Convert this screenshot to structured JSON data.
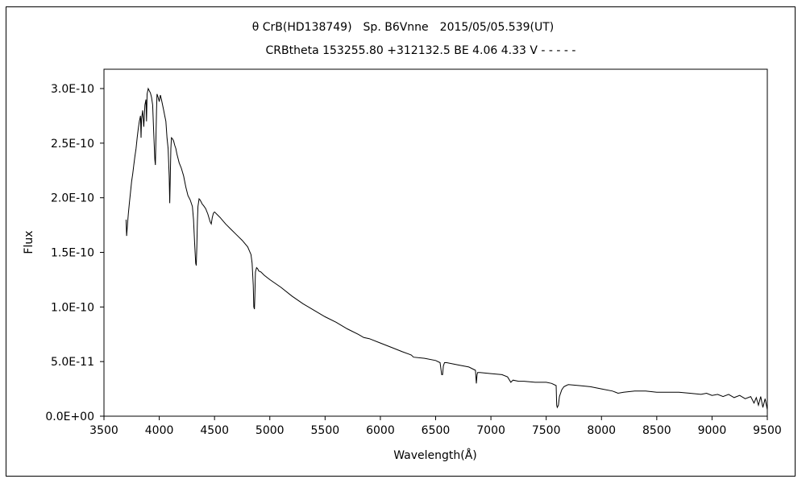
{
  "chart_data": {
    "type": "line",
    "title": "θ CrB(HD138749)　Sp. B6Vnne　2015/05/05.539(UT)",
    "subtitle": "CRBtheta 153255.80 +312132.5 BE 4.06 4.33 V - - - - -",
    "xlabel": "Wavelength(Å)",
    "ylabel": "Flux",
    "xlim": [
      3500,
      9500
    ],
    "ylim": [
      0,
      3e-10
    ],
    "x_ticks": [
      "3500",
      "4000",
      "4500",
      "5000",
      "5500",
      "6000",
      "6500",
      "7000",
      "7500",
      "8000",
      "8500",
      "9000",
      "9500"
    ],
    "y_ticks": [
      "0.0E+00",
      "5.0E-11",
      "1.0E-10",
      "1.5E-10",
      "2.0E-10",
      "2.5E-10",
      "3.0E-10"
    ],
    "grid": false,
    "legend": "none",
    "line_color": "#000000",
    "series": [
      {
        "x": [
          3700,
          3705,
          3710,
          3720,
          3730,
          3740,
          3750,
          3760,
          3770,
          3780,
          3790,
          3800,
          3810,
          3820,
          3830,
          3835,
          3840,
          3850,
          3860,
          3870,
          3880,
          3885,
          3890,
          3900,
          3910,
          3920,
          3930,
          3940,
          3950,
          3960,
          3965,
          3970,
          3975,
          3980,
          3990,
          4000,
          4010,
          4020,
          4030,
          4040,
          4050,
          4060,
          4070,
          4080,
          4090,
          4095,
          4100,
          4105,
          4110,
          4120,
          4130,
          4140,
          4150,
          4160,
          4170,
          4180,
          4200,
          4220,
          4240,
          4260,
          4280,
          4300,
          4310,
          4320,
          4330,
          4335,
          4340,
          4345,
          4350,
          4360,
          4370,
          4380,
          4390,
          4400,
          4420,
          4440,
          4460,
          4470,
          4480,
          4490,
          4500,
          4550,
          4600,
          4650,
          4700,
          4750,
          4800,
          4830,
          4840,
          4850,
          4855,
          4861,
          4865,
          4870,
          4880,
          4890,
          4900,
          4920,
          4950,
          5000,
          5100,
          5200,
          5300,
          5400,
          5500,
          5600,
          5700,
          5800,
          5850,
          5900,
          6000,
          6100,
          6200,
          6280,
          6300,
          6400,
          6500,
          6540,
          6555,
          6563,
          6570,
          6580,
          6600,
          6700,
          6800,
          6860,
          6868,
          6875,
          6880,
          6900,
          7000,
          7100,
          7150,
          7180,
          7200,
          7250,
          7300,
          7400,
          7500,
          7550,
          7590,
          7595,
          7600,
          7610,
          7620,
          7640,
          7660,
          7680,
          7700,
          7800,
          7900,
          8000,
          8100,
          8150,
          8200,
          8300,
          8400,
          8500,
          8600,
          8700,
          8800,
          8900,
          8950,
          9000,
          9050,
          9100,
          9150,
          9200,
          9250,
          9300,
          9350,
          9380,
          9400,
          9420,
          9440,
          9460,
          9480,
          9500
        ],
        "y": [
          1.8e-10,
          1.65e-10,
          1.72e-10,
          1.85e-10,
          1.95e-10,
          2.05e-10,
          2.15e-10,
          2.22e-10,
          2.3e-10,
          2.38e-10,
          2.45e-10,
          2.55e-10,
          2.63e-10,
          2.7e-10,
          2.75e-10,
          2.55e-10,
          2.72e-10,
          2.8e-10,
          2.65e-10,
          2.85e-10,
          2.9e-10,
          2.7e-10,
          2.95e-10,
          3e-10,
          2.98e-10,
          2.96e-10,
          2.92e-10,
          2.85e-10,
          2.6e-10,
          2.35e-10,
          2.3e-10,
          2.55e-10,
          2.8e-10,
          2.95e-10,
          2.92e-10,
          2.88e-10,
          2.94e-10,
          2.9e-10,
          2.85e-10,
          2.8e-10,
          2.75e-10,
          2.7e-10,
          2.55e-10,
          2.45e-10,
          2.2e-10,
          1.95e-10,
          2.2e-10,
          2.45e-10,
          2.55e-10,
          2.54e-10,
          2.52e-10,
          2.48e-10,
          2.45e-10,
          2.4e-10,
          2.36e-10,
          2.32e-10,
          2.27e-10,
          2.2e-10,
          2.1e-10,
          2.02e-10,
          1.98e-10,
          1.92e-10,
          1.8e-10,
          1.58e-10,
          1.4e-10,
          1.38e-10,
          1.55e-10,
          1.78e-10,
          1.92e-10,
          1.99e-10,
          1.98e-10,
          1.96e-10,
          1.94e-10,
          1.93e-10,
          1.9e-10,
          1.85e-10,
          1.78e-10,
          1.76e-10,
          1.82e-10,
          1.86e-10,
          1.87e-10,
          1.82e-10,
          1.76e-10,
          1.71e-10,
          1.66e-10,
          1.61e-10,
          1.55e-10,
          1.48e-10,
          1.4e-10,
          1.2e-10,
          1e-10,
          9.8e-11,
          1.1e-10,
          1.32e-10,
          1.36e-10,
          1.35e-10,
          1.33e-10,
          1.32e-10,
          1.29e-10,
          1.25e-10,
          1.18e-10,
          1.1e-10,
          1.03e-10,
          9.7e-11,
          9.1e-11,
          8.6e-11,
          8e-11,
          7.5e-11,
          7.2e-11,
          7.1e-11,
          6.7e-11,
          6.3e-11,
          5.9e-11,
          5.6e-11,
          5.4e-11,
          5.3e-11,
          5.1e-11,
          4.9e-11,
          3.8e-11,
          3.8e-11,
          4.6e-11,
          4.9e-11,
          4.9e-11,
          4.7e-11,
          4.5e-11,
          4.2e-11,
          3e-11,
          3.8e-11,
          4e-11,
          4e-11,
          3.9e-11,
          3.8e-11,
          3.6e-11,
          3.1e-11,
          3.3e-11,
          3.2e-11,
          3.2e-11,
          3.1e-11,
          3.1e-11,
          3e-11,
          2.8e-11,
          1e-11,
          8e-12,
          1e-11,
          1.8e-11,
          2.4e-11,
          2.7e-11,
          2.8e-11,
          2.9e-11,
          2.8e-11,
          2.7e-11,
          2.5e-11,
          2.3e-11,
          2.1e-11,
          2.2e-11,
          2.3e-11,
          2.3e-11,
          2.2e-11,
          2.2e-11,
          2.2e-11,
          2.1e-11,
          2e-11,
          2.1e-11,
          1.9e-11,
          2e-11,
          1.8e-11,
          2e-11,
          1.7e-11,
          1.9e-11,
          1.6e-11,
          1.8e-11,
          1.2e-11,
          1.7e-11,
          1e-11,
          1.8e-11,
          8e-12,
          1.6e-11,
          6e-12
        ]
      }
    ]
  }
}
